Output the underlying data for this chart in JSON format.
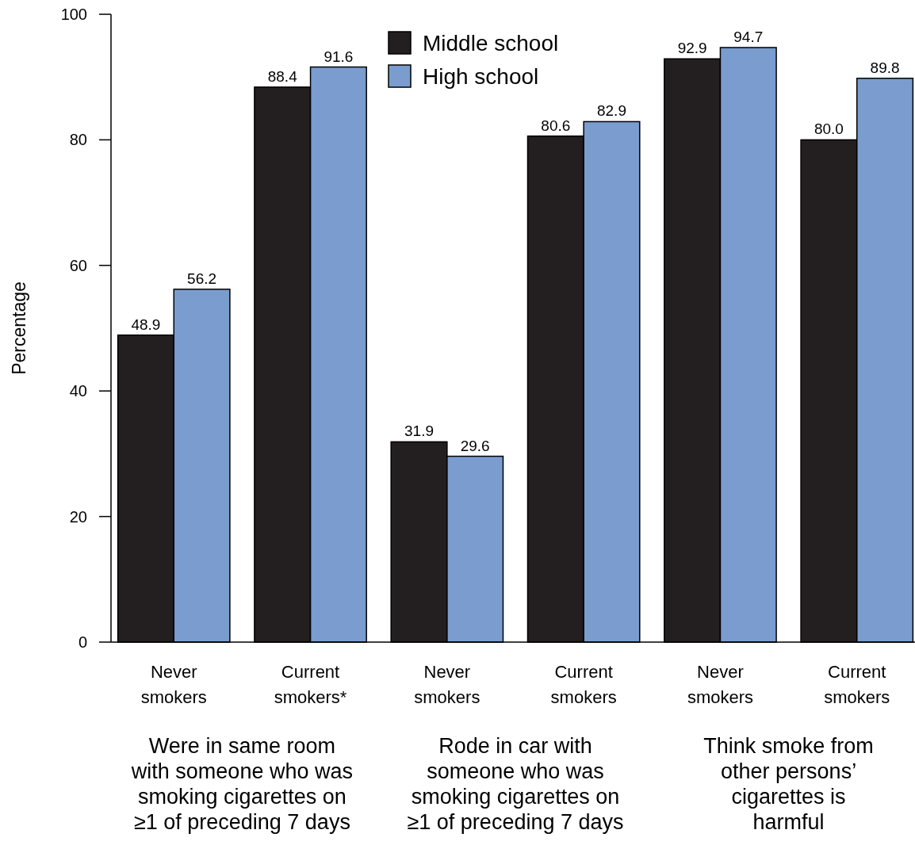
{
  "chart_data": {
    "type": "bar",
    "ylabel": "Percentage",
    "categories": [
      "Never\nsmokers",
      "Current\nsmokers*",
      "Never\nsmokers",
      "Current\nsmokers",
      "Never\nsmokers",
      "Current\nsmokers"
    ],
    "series": [
      {
        "name": "Middle school",
        "color": "#231f20",
        "values": [
          48.9,
          88.4,
          31.9,
          80.6,
          92.9,
          80.0
        ]
      },
      {
        "name": "High school",
        "color": "#7a9cce",
        "values": [
          56.2,
          91.6,
          29.6,
          82.9,
          94.7,
          89.8
        ]
      }
    ],
    "value_labels": [
      [
        "48.9",
        "88.4",
        "31.9",
        "80.6",
        "92.9",
        "80.0"
      ],
      [
        "56.2",
        "91.6",
        "29.6",
        "82.9",
        "94.7",
        "89.8"
      ]
    ],
    "annotations": [
      "Were in same room\nwith someone who was\nsmoking cigarettes  on\n≥1 of preceding 7 days",
      "Rode in car with\nsomeone who was\nsmoking cigarettes on\n≥1 of preceding 7 days",
      "Think smoke from\nother persons’\ncigarettes is\nharmful"
    ],
    "ylim": [
      0,
      100
    ],
    "yticks": [
      0,
      20,
      40,
      60,
      80,
      100
    ],
    "grid": false,
    "legend": "top"
  }
}
